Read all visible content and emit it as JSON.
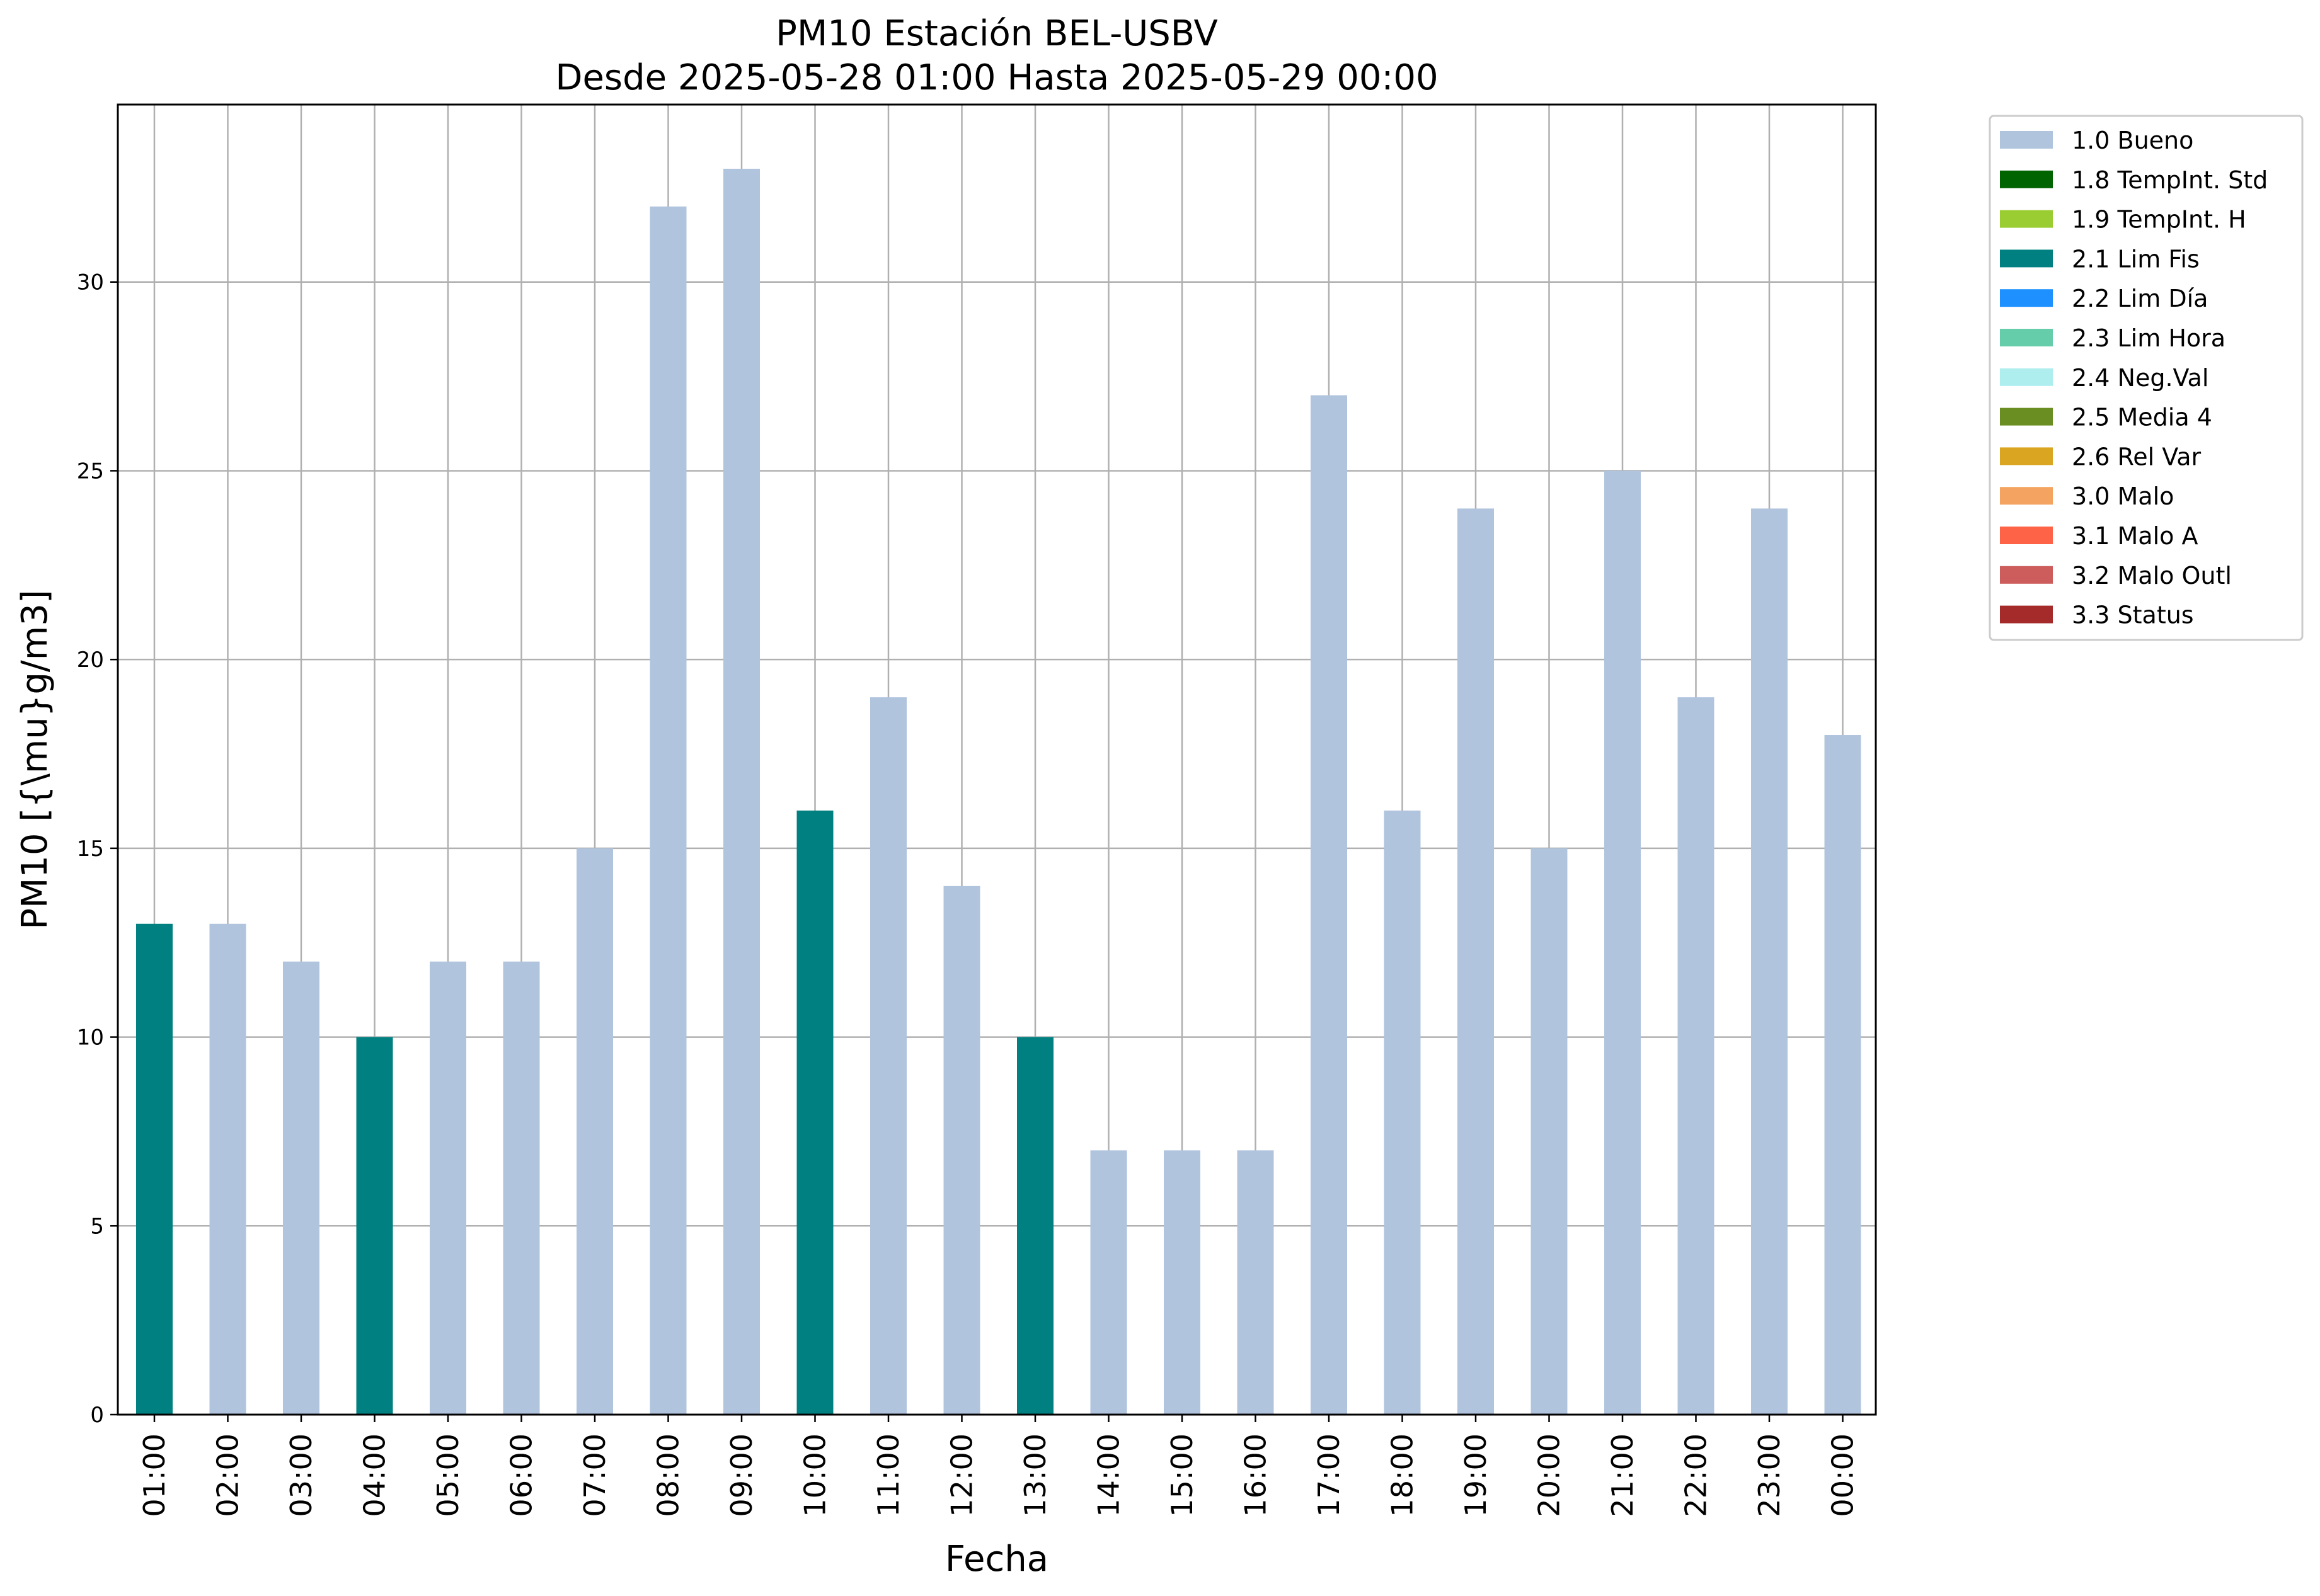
{
  "chart_data": {
    "type": "bar",
    "title": "PM10 Estación BEL-USBV",
    "subtitle": "Desde 2025-05-28 01:00 Hasta 2025-05-29 00:00",
    "xlabel": "Fecha",
    "ylabel": "PM10 [{\\mu}g/m3]",
    "categories": [
      "01:00",
      "02:00",
      "03:00",
      "04:00",
      "05:00",
      "06:00",
      "07:00",
      "08:00",
      "09:00",
      "10:00",
      "11:00",
      "12:00",
      "13:00",
      "14:00",
      "15:00",
      "16:00",
      "17:00",
      "18:00",
      "19:00",
      "20:00",
      "21:00",
      "22:00",
      "23:00",
      "00:00"
    ],
    "values": [
      13,
      13,
      12,
      10,
      12,
      12,
      15,
      32,
      33,
      16,
      19,
      14,
      10,
      7,
      7,
      7,
      27,
      16,
      24,
      15,
      25,
      19,
      24,
      18
    ],
    "flags": [
      "2.1 Lim Fis",
      "1.0 Bueno",
      "1.0 Bueno",
      "2.1 Lim Fis",
      "1.0 Bueno",
      "1.0 Bueno",
      "1.0 Bueno",
      "1.0 Bueno",
      "1.0 Bueno",
      "2.1 Lim Fis",
      "1.0 Bueno",
      "1.0 Bueno",
      "2.1 Lim Fis",
      "1.0 Bueno",
      "1.0 Bueno",
      "1.0 Bueno",
      "1.0 Bueno",
      "1.0 Bueno",
      "1.0 Bueno",
      "1.0 Bueno",
      "1.0 Bueno",
      "1.0 Bueno",
      "1.0 Bueno",
      "1.0 Bueno"
    ],
    "ylim": [
      0,
      34.7
    ],
    "yticks": [
      0,
      5,
      10,
      15,
      20,
      25,
      30
    ],
    "grid": true,
    "legend_position": "outside-top-right",
    "legend": [
      {
        "label": "1.0 Bueno",
        "color": "#b0c4de"
      },
      {
        "label": "1.8 TempInt. Std",
        "color": "#006400"
      },
      {
        "label": "1.9 TempInt. H",
        "color": "#9acd32"
      },
      {
        "label": "2.1 Lim Fis",
        "color": "#008080"
      },
      {
        "label": "2.2 Lim Día",
        "color": "#1e90ff"
      },
      {
        "label": "2.3 Lim Hora",
        "color": "#66cdaa"
      },
      {
        "label": "2.4 Neg.Val",
        "color": "#afeeee"
      },
      {
        "label": "2.5 Media 4",
        "color": "#6b8e23"
      },
      {
        "label": "2.6 Rel Var",
        "color": "#daa520"
      },
      {
        "label": "3.0 Malo",
        "color": "#f4a460"
      },
      {
        "label": "3.1 Malo A",
        "color": "#ff6347"
      },
      {
        "label": "3.2 Malo Outl",
        "color": "#cd5c5c"
      },
      {
        "label": "3.3 Status",
        "color": "#a52a2a"
      }
    ]
  }
}
